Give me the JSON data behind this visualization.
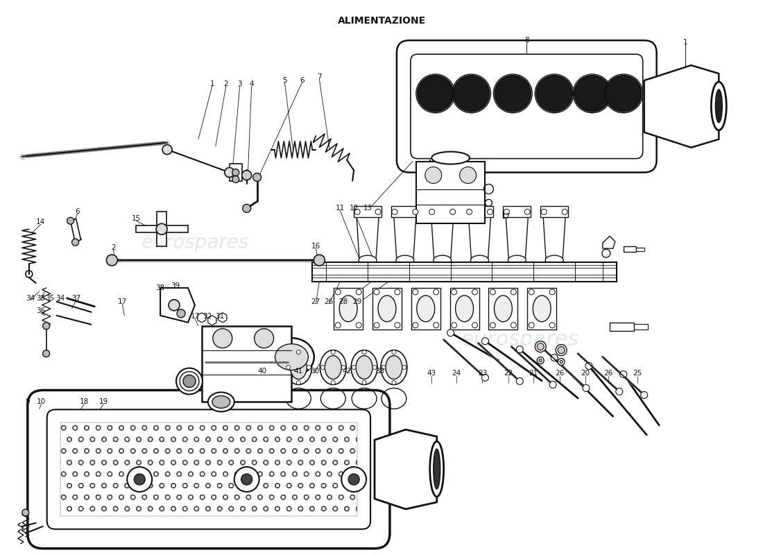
{
  "title": "ALIMENTAZIONE",
  "title_fontsize": 10,
  "title_fontweight": "bold",
  "bg_color": "#ffffff",
  "fig_width": 11.0,
  "fig_height": 8.0,
  "dpi": 100,
  "watermark_text1": "eurospares",
  "watermark_text2": "eurospares",
  "watermark_color": "#b8cfe0",
  "watermark_alpha": 0.45,
  "line_color": "#111111",
  "line_width": 1.0,
  "font_size_numbers": 7.5
}
